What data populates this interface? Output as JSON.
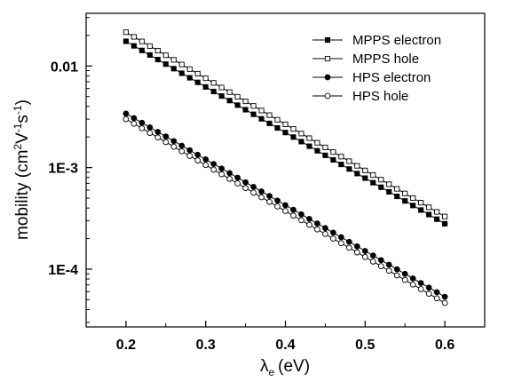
{
  "chart_data": {
    "type": "scatter",
    "y_scale": "log",
    "xlim": [
      0.15,
      0.65
    ],
    "ylim": [
      2.7e-05,
      0.033
    ],
    "x_ticks": [
      {
        "value": 0.2,
        "label": "0.2"
      },
      {
        "value": 0.3,
        "label": "0.3"
      },
      {
        "value": 0.4,
        "label": "0.4"
      },
      {
        "value": 0.5,
        "label": "0.5"
      },
      {
        "value": 0.6,
        "label": "0.6"
      }
    ],
    "y_ticks": [
      {
        "value": 0.01,
        "label": "0.01"
      },
      {
        "value": 0.001,
        "label": "1E-3"
      },
      {
        "value": 0.0001,
        "label": "1E-4"
      }
    ],
    "xlabel": {
      "symbol": "λ",
      "subscript": "e",
      "unit": "(eV)"
    },
    "ylabel": {
      "base": "mobility (cm",
      "sup1": "2",
      "mid1": "V",
      "sup2": "-1",
      "mid2": "s",
      "sup3": "-1",
      "end": ")"
    },
    "legend_position": "top-right",
    "x_points": {
      "start": 0.2,
      "end": 0.6,
      "count": 41
    },
    "series": [
      {
        "name": "MPPS electron",
        "marker": "square-filled",
        "y_start": 0.0175,
        "y_end": 0.00028
      },
      {
        "name": "MPPS hole",
        "marker": "square-open",
        "y_start": 0.0215,
        "y_end": 0.00033
      },
      {
        "name": "HPS electron",
        "marker": "circle-filled",
        "y_start": 0.0034,
        "y_end": 5.35e-05
      },
      {
        "name": "HPS hole",
        "marker": "circle-open",
        "y_start": 0.003,
        "y_end": 4.65e-05
      }
    ]
  }
}
